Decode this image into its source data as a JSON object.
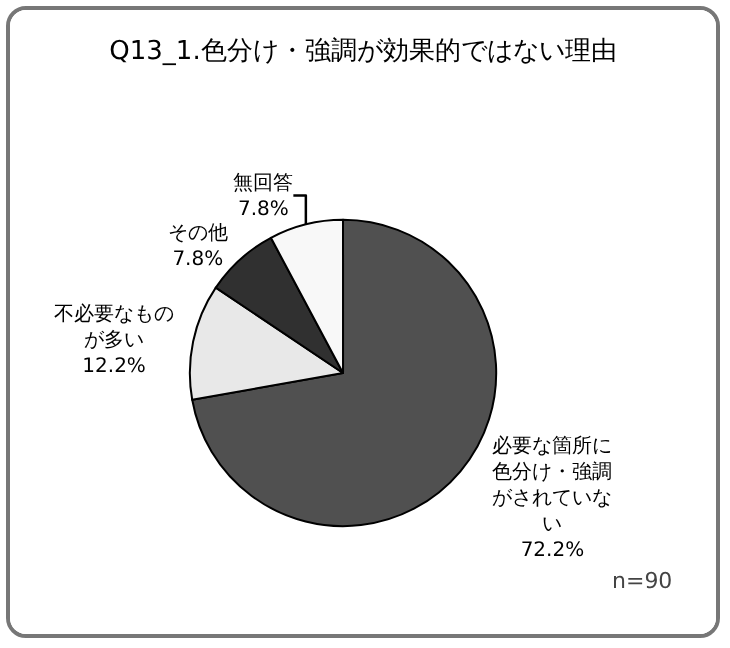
{
  "chart_data": {
    "type": "pie",
    "title": "Q13_1.色分け・強調が効果的ではない理由",
    "categories": [
      "必要な箇所に色分け・強調がされていない",
      "不必要なものが多い",
      "その他",
      "無回答"
    ],
    "values": [
      72.2,
      12.2,
      7.8,
      7.8
    ],
    "value_labels": [
      "72.2%",
      "12.2%",
      "7.8%",
      "7.8%"
    ],
    "colors": [
      "#505050",
      "#e8e8e8",
      "#303030",
      "#f8f8f8"
    ],
    "legend": false,
    "annotations": [
      "n=90"
    ]
  }
}
